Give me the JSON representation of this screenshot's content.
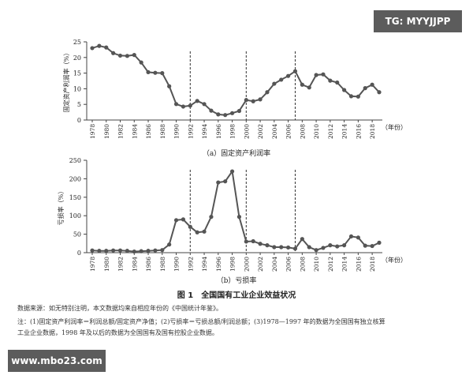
{
  "watermarks": {
    "top": "TG: MYYJJPP",
    "bottom": "www.mbo23.com"
  },
  "figure": {
    "title": "图 1　全国国有工业企业效益状况",
    "source_note": "数据来源：如无特别注明，本文数据均来自相应年份的《中国统计年鉴》。",
    "note_line1": "注：(1)固定资产利润率＝利润总额/固定资产净值；(2)亏损率＝亏损总额/利润总额；(3)1978—1997 年的数据为全国国有独立核算",
    "note_line2": "工业企业数据，1998 年及以后的数据为全国国有及国有控股企业数据。"
  },
  "chart_data": [
    {
      "type": "line",
      "caption": "（a）固定资产利润率",
      "ylabel": "固定资产利润率（%）",
      "xunit": "（年份）",
      "ylim": [
        0,
        25
      ],
      "yticks": [
        0,
        5,
        10,
        15,
        20,
        25
      ],
      "xticks": [
        "1978",
        "1980",
        "1982",
        "1984",
        "1986",
        "1988",
        "1990",
        "1992",
        "1994",
        "1996",
        "1998",
        "2000",
        "2002",
        "2004",
        "2006",
        "2008",
        "2010",
        "2012",
        "2014",
        "2016",
        "2018"
      ],
      "vlines": [
        1992,
        2000,
        2007
      ],
      "x": [
        1978,
        1979,
        1980,
        1981,
        1982,
        1983,
        1984,
        1985,
        1986,
        1987,
        1988,
        1989,
        1990,
        1991,
        1992,
        1993,
        1994,
        1995,
        1996,
        1997,
        1998,
        1999,
        2000,
        2001,
        2002,
        2003,
        2004,
        2005,
        2006,
        2007,
        2008,
        2009,
        2010,
        2011,
        2012,
        2013,
        2014,
        2015,
        2016,
        2017,
        2018,
        2019
      ],
      "values": [
        23.0,
        23.7,
        23.2,
        21.4,
        20.6,
        20.5,
        20.8,
        18.4,
        15.3,
        15.1,
        15.0,
        10.8,
        5.1,
        4.3,
        4.6,
        6.1,
        5.1,
        3.0,
        1.8,
        1.6,
        2.2,
        2.9,
        6.4,
        6.0,
        6.6,
        8.9,
        11.6,
        12.9,
        14.1,
        15.6,
        11.3,
        10.4,
        14.4,
        14.6,
        12.6,
        12.0,
        9.6,
        7.6,
        7.5,
        10.2,
        11.3,
        8.9
      ]
    },
    {
      "type": "line",
      "caption": "（b）亏损率",
      "ylabel": "亏损率（%）",
      "xunit": "（年份）",
      "ylim": [
        0,
        250
      ],
      "yticks": [
        0,
        50,
        100,
        150,
        200,
        250
      ],
      "xticks": [
        "1978",
        "1980",
        "1982",
        "1984",
        "1986",
        "1988",
        "1990",
        "1992",
        "1994",
        "1996",
        "1998",
        "2000",
        "2002",
        "2004",
        "2006",
        "2008",
        "2010",
        "2012",
        "2014",
        "2016",
        "2018"
      ],
      "vlines": [
        1992,
        2000,
        2007
      ],
      "x": [
        1978,
        1979,
        1980,
        1981,
        1982,
        1983,
        1984,
        1985,
        1986,
        1987,
        1988,
        1989,
        1990,
        1991,
        1992,
        1993,
        1994,
        1995,
        1996,
        1997,
        1998,
        1999,
        2000,
        2001,
        2002,
        2003,
        2004,
        2005,
        2006,
        2007,
        2008,
        2009,
        2010,
        2011,
        2012,
        2013,
        2014,
        2015,
        2016,
        2017,
        2018,
        2019
      ],
      "values": [
        6,
        5,
        5,
        6,
        6,
        5,
        3,
        4,
        5,
        6,
        7,
        22,
        88,
        90,
        70,
        55,
        57,
        97,
        190,
        193,
        220,
        97,
        30,
        31,
        24,
        20,
        15,
        15,
        14,
        11,
        37,
        15,
        7,
        13,
        20,
        17,
        20,
        44,
        41,
        19,
        18,
        27
      ]
    }
  ]
}
